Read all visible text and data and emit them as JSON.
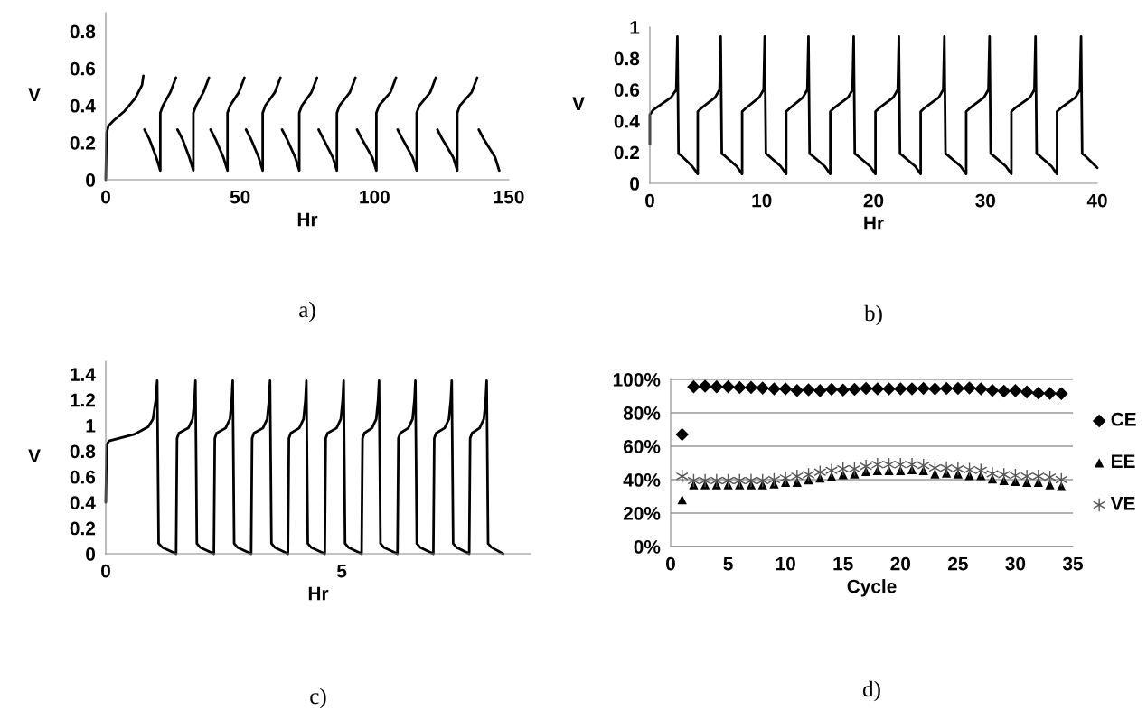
{
  "chart_data": [
    {
      "type": "line",
      "xlabel": "Hr",
      "ylabel": "V",
      "annotations": [
        "a)"
      ],
      "xlim": [
        0,
        150
      ],
      "ylim": [
        0,
        0.9
      ],
      "xticks": [
        0,
        50,
        100,
        150
      ],
      "yticks": [
        0,
        0.2,
        0.4,
        0.6,
        0.8
      ],
      "grid": false,
      "legend": false,
      "marker": "none",
      "line_style": "solid",
      "series": [
        {
          "color": "#000000",
          "x": [
            0,
            0.3,
            1,
            3,
            7,
            11,
            13.5,
            14.0,
            14.2,
            14.4,
            16.2,
            18.8,
            20.3,
            20.3,
            21.3,
            24.0,
            26.1,
            26.5,
            26.7,
            28.5,
            31.1,
            32.6,
            32.6,
            33.6,
            36.3,
            38.4,
            38.8,
            39.0,
            40.8,
            43.8,
            45.3,
            45.3,
            46.3,
            49.5,
            51.6,
            52.0,
            52.2,
            54.0,
            56.9,
            58.4,
            58.4,
            59.4,
            62.9,
            65.0,
            65.4,
            65.6,
            67.4,
            70.5,
            72.0,
            72.0,
            73.0,
            76.5,
            78.6,
            79.0,
            79.2,
            81.0,
            84.5,
            86.0,
            86.0,
            87.0,
            90.8,
            92.9,
            93.3,
            93.5,
            95.3,
            99.2,
            100.7,
            100.7,
            101.7,
            105.9,
            108.0,
            108.4,
            108.6,
            110.4,
            114.2,
            115.7,
            115.7,
            116.7,
            120.7,
            122.8,
            123.2,
            123.4,
            125.2,
            129.3,
            130.8,
            130.8,
            131.8,
            136.1,
            138.2,
            138.6,
            138.8,
            140.6,
            144.9,
            146.4
          ],
          "values": [
            0,
            0.25,
            0.29,
            0.32,
            0.37,
            0.44,
            0.51,
            0.56,
            null,
            0.27,
            0.22,
            0.12,
            0.05,
            0.36,
            0.4,
            0.47,
            0.55,
            null,
            0.27,
            0.22,
            0.12,
            0.05,
            0.36,
            0.4,
            0.47,
            0.55,
            null,
            0.27,
            0.22,
            0.12,
            0.05,
            0.36,
            0.4,
            0.47,
            0.55,
            null,
            0.27,
            0.22,
            0.12,
            0.05,
            0.36,
            0.4,
            0.47,
            0.55,
            null,
            0.27,
            0.22,
            0.12,
            0.05,
            0.36,
            0.4,
            0.47,
            0.55,
            null,
            0.27,
            0.22,
            0.12,
            0.05,
            0.36,
            0.4,
            0.47,
            0.55,
            null,
            0.27,
            0.22,
            0.12,
            0.05,
            0.36,
            0.4,
            0.47,
            0.55,
            null,
            0.27,
            0.22,
            0.12,
            0.05,
            0.36,
            0.4,
            0.47,
            0.55,
            null,
            0.27,
            0.22,
            0.12,
            0.05,
            0.36,
            0.4,
            0.47,
            0.55,
            null,
            0.27,
            0.22,
            0.12,
            0.05
          ]
        }
      ]
    },
    {
      "type": "line",
      "xlabel": "Hr",
      "ylabel": "V",
      "annotations": [
        "b)"
      ],
      "xlim": [
        0,
        40
      ],
      "ylim": [
        0,
        1
      ],
      "xticks": [
        0,
        10,
        20,
        30,
        40
      ],
      "yticks": [
        0,
        0.2,
        0.4,
        0.6,
        0.8,
        1
      ],
      "grid": false,
      "legend": false,
      "marker": "none",
      "line_style": "solid",
      "series": [
        {
          "color": "#000000",
          "x": [
            0,
            0,
            0.3,
            1.9,
            2.36,
            2.46,
            2.56,
            2.76,
            3.78,
            4.28,
            4.28,
            4.58,
            5.83,
            6.23,
            6.33,
            6.43,
            6.63,
            7.75,
            8.25,
            8.25,
            8.55,
            9.77,
            10.17,
            10.27,
            10.37,
            10.57,
            11.69,
            12.19,
            12.19,
            12.49,
            13.68,
            14.08,
            14.18,
            14.28,
            14.48,
            15.63,
            16.13,
            16.13,
            16.43,
            17.72,
            18.12,
            18.22,
            18.32,
            18.52,
            19.67,
            20.17,
            20.17,
            20.47,
            21.76,
            22.16,
            22.26,
            22.36,
            22.56,
            23.71,
            24.21,
            24.21,
            24.51,
            25.83,
            26.23,
            26.33,
            26.43,
            26.63,
            27.78,
            28.28,
            28.28,
            28.58,
            29.87,
            30.27,
            30.37,
            30.47,
            30.67,
            31.82,
            32.32,
            32.32,
            32.62,
            33.98,
            34.38,
            34.48,
            34.58,
            34.78,
            35.9,
            36.4,
            36.4,
            36.7,
            38.05,
            38.45,
            38.55,
            38.65,
            38.85,
            40
          ],
          "values": [
            0.25,
            0.44,
            0.47,
            0.55,
            0.6,
            0.94,
            0.19,
            0.18,
            0.11,
            0.06,
            0.46,
            0.48,
            0.55,
            0.6,
            0.94,
            0.19,
            0.18,
            0.11,
            0.06,
            0.46,
            0.48,
            0.55,
            0.6,
            0.94,
            0.19,
            0.18,
            0.11,
            0.06,
            0.46,
            0.48,
            0.55,
            0.6,
            0.94,
            0.19,
            0.18,
            0.11,
            0.06,
            0.46,
            0.48,
            0.55,
            0.6,
            0.94,
            0.19,
            0.18,
            0.11,
            0.06,
            0.46,
            0.48,
            0.55,
            0.6,
            0.94,
            0.19,
            0.18,
            0.11,
            0.06,
            0.46,
            0.48,
            0.55,
            0.6,
            0.94,
            0.19,
            0.18,
            0.11,
            0.06,
            0.46,
            0.48,
            0.55,
            0.6,
            0.94,
            0.19,
            0.18,
            0.11,
            0.06,
            0.46,
            0.48,
            0.55,
            0.6,
            0.94,
            0.19,
            0.18,
            0.11,
            0.06,
            0.46,
            0.48,
            0.55,
            0.6,
            0.94,
            0.19,
            0.18,
            0.1
          ]
        }
      ]
    },
    {
      "type": "line",
      "xlabel": "Hr",
      "ylabel": "V",
      "annotations": [
        "c)"
      ],
      "xlim": [
        0,
        9
      ],
      "ylim": [
        0,
        1.5
      ],
      "xticks": [
        0,
        5
      ],
      "yticks": [
        0,
        0.2,
        0.4,
        0.6,
        0.8,
        1,
        1.2,
        1.4
      ],
      "grid": false,
      "legend": false,
      "marker": "none",
      "line_style": "solid",
      "series": [
        {
          "color": "#000000",
          "x": [
            0,
            0.02,
            0.07,
            0.6,
            0.9,
            1.0,
            1.06,
            1.09,
            1.12,
            1.2,
            1.49,
            1.51,
            1.55,
            1.75,
            1.84,
            1.88,
            1.9,
            1.93,
            2.0,
            2.29,
            2.31,
            2.35,
            2.54,
            2.63,
            2.67,
            2.69,
            2.72,
            2.79,
            3.08,
            3.1,
            3.14,
            3.33,
            3.42,
            3.46,
            3.48,
            3.51,
            3.58,
            3.86,
            3.88,
            3.92,
            4.1,
            4.19,
            4.23,
            4.25,
            4.28,
            4.35,
            4.64,
            4.66,
            4.7,
            4.89,
            4.98,
            5.02,
            5.04,
            5.07,
            5.14,
            5.42,
            5.44,
            5.48,
            5.64,
            5.73,
            5.77,
            5.79,
            5.82,
            5.89,
            6.18,
            6.2,
            6.24,
            6.41,
            6.5,
            6.54,
            6.56,
            6.59,
            6.66,
            6.94,
            6.96,
            7.0,
            7.18,
            7.27,
            7.31,
            7.33,
            7.36,
            7.43,
            7.7,
            7.72,
            7.76,
            7.92,
            8.01,
            8.05,
            8.07,
            8.1,
            8.17,
            8.42
          ],
          "values": [
            0.4,
            0.85,
            0.88,
            0.93,
            0.99,
            1.05,
            1.2,
            1.35,
            0.08,
            0.05,
            0,
            0.9,
            0.94,
            0.98,
            1.05,
            1.2,
            1.35,
            0.08,
            0.05,
            0,
            0.9,
            0.94,
            0.98,
            1.05,
            1.2,
            1.35,
            0.08,
            0.05,
            0,
            0.9,
            0.94,
            0.98,
            1.05,
            1.2,
            1.35,
            0.08,
            0.05,
            0,
            0.9,
            0.94,
            0.98,
            1.05,
            1.2,
            1.35,
            0.08,
            0.05,
            0,
            0.9,
            0.94,
            0.98,
            1.05,
            1.2,
            1.35,
            0.08,
            0.05,
            0,
            0.9,
            0.94,
            0.98,
            1.05,
            1.2,
            1.35,
            0.08,
            0.05,
            0,
            0.9,
            0.94,
            0.98,
            1.05,
            1.2,
            1.35,
            0.08,
            0.05,
            0,
            0.9,
            0.94,
            0.98,
            1.05,
            1.2,
            1.35,
            0.08,
            0.05,
            0,
            0.9,
            0.94,
            0.98,
            1.05,
            1.2,
            1.35,
            0.08,
            0.05,
            0
          ]
        }
      ]
    },
    {
      "type": "scatter",
      "xlabel": "Cycle",
      "annotations": [
        "d)"
      ],
      "xlim": [
        0,
        35
      ],
      "ylim": [
        0,
        100
      ],
      "xticks": [
        0,
        5,
        10,
        15,
        20,
        25,
        30,
        35
      ],
      "yticks": [
        {
          "value": 0,
          "label": "0%"
        },
        {
          "value": 20,
          "label": "20%"
        },
        {
          "value": 40,
          "label": "40%"
        },
        {
          "value": 60,
          "label": "60%"
        },
        {
          "value": 80,
          "label": "80%"
        },
        {
          "value": 100,
          "label": "100%"
        }
      ],
      "grid": "y",
      "legend": "right",
      "x": [
        1,
        2,
        3,
        4,
        5,
        6,
        7,
        8,
        9,
        10,
        11,
        12,
        13,
        14,
        15,
        16,
        17,
        18,
        19,
        20,
        21,
        22,
        23,
        24,
        25,
        26,
        27,
        28,
        29,
        30,
        31,
        32,
        33,
        34
      ],
      "series": [
        {
          "name": "CE",
          "color": "#000000",
          "marker": "diamond",
          "values": [
            67,
            95.6,
            95.9,
            95.6,
            95.6,
            95.1,
            95.2,
            94.8,
            94.3,
            94.3,
            93.4,
            93.8,
            93.3,
            94.1,
            93.6,
            94.1,
            94.6,
            94.3,
            94.3,
            94.3,
            94.3,
            94.6,
            94.3,
            94.6,
            94.6,
            94.9,
            94.3,
            93.4,
            93,
            93.3,
            92.5,
            91.8,
            91.6,
            91.5
          ]
        },
        {
          "name": "EE",
          "color": "#000000",
          "marker": "triangle",
          "values": [
            28,
            37,
            37,
            37,
            37,
            37,
            37,
            37,
            37.5,
            38.5,
            38.5,
            40,
            41,
            42,
            43,
            43.5,
            45,
            45.5,
            45.5,
            45.5,
            46,
            45.5,
            43.5,
            44,
            43.5,
            42.5,
            42.5,
            40.5,
            39.5,
            39,
            38.5,
            38.5,
            37,
            36
          ]
        },
        {
          "name": "VE",
          "color": "#555555",
          "marker": "cross",
          "values": [
            42,
            39.5,
            39.5,
            39.5,
            39.5,
            39.5,
            39.5,
            39.5,
            40,
            41,
            42,
            43,
            44.5,
            45.5,
            46.5,
            46.5,
            48,
            49,
            49,
            49,
            49,
            48.5,
            47,
            47,
            46.5,
            46,
            45.5,
            43.5,
            43,
            42.5,
            42,
            42,
            41.5,
            40
          ]
        }
      ]
    }
  ]
}
